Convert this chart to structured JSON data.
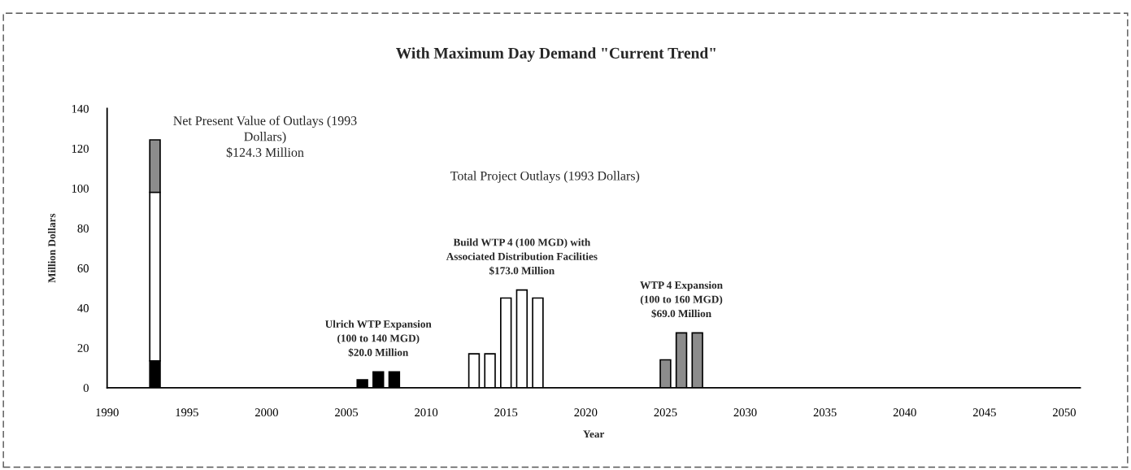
{
  "chart_data": {
    "type": "bar",
    "title": "With Maximum Day Demand \"Current Trend\"",
    "xlabel": "Year",
    "ylabel": "Million Dollars",
    "stacked": true,
    "grid": false,
    "x": [
      1993,
      2006,
      2007,
      2008,
      2013,
      2014,
      2015,
      2016,
      2017,
      2025,
      2026,
      2027
    ],
    "series": [
      {
        "color": "#000000",
        "values": [
          13.5,
          4,
          8,
          8,
          null,
          null,
          null,
          null,
          null,
          null,
          null,
          null
        ]
      },
      {
        "color": "#ffffff",
        "values": [
          84.5,
          null,
          null,
          null,
          17,
          17,
          45,
          49,
          45,
          null,
          null,
          null
        ]
      },
      {
        "color": "#8c8c8c",
        "values": [
          26.3,
          null,
          null,
          null,
          null,
          null,
          null,
          null,
          null,
          14,
          27.5,
          27.5
        ]
      }
    ],
    "xlim": [
      1990,
      2051
    ],
    "xticks": [
      1990,
      1995,
      2000,
      2005,
      2010,
      2015,
      2020,
      2025,
      2030,
      2035,
      2040,
      2045,
      2050
    ],
    "ylim": [
      0,
      140
    ],
    "yticks": [
      0,
      20,
      40,
      60,
      80,
      100,
      120,
      140
    ],
    "annotations": [
      {
        "text": "Net Present Value of Outlays (1993\nDollars)\n$124.3 Million",
        "x": 1993,
        "y": 124.3
      },
      "Total Project Outlays (1993 Dollars)",
      {
        "text": "Ulrich WTP Expansion\n(100 to 140 MGD)\n$20.0 Million",
        "x": 2007,
        "y": 8
      },
      {
        "text": "Build WTP 4 (100 MGD) with\nAssociated Distribution Facilities\n$173.0 Million",
        "x": 2016,
        "y": 49
      },
      {
        "text": "WTP 4 Expansion\n(100 to 160 MGD)\n$69.0 Million",
        "x": 2026,
        "y": 27.5
      }
    ]
  }
}
